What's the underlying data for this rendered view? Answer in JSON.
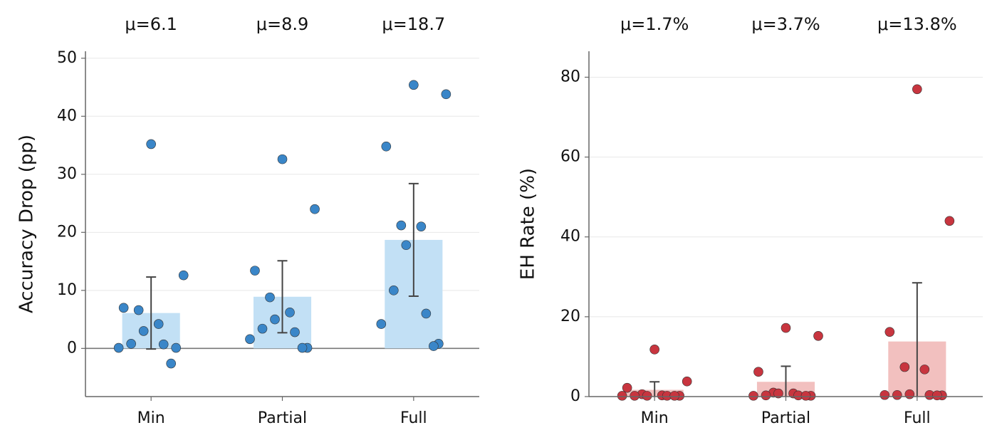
{
  "chart_data": [
    {
      "type": "bar",
      "ylabel": "Accuracy Drop (pp)",
      "categories": [
        "Min",
        "Partial",
        "Full"
      ],
      "values": [
        6.1,
        8.9,
        18.7
      ],
      "value_labels": [
        "μ=6.1",
        "μ=8.9",
        "μ=18.7"
      ],
      "errors": [
        6.2,
        6.2,
        9.7
      ],
      "points": [
        [
          35.2,
          12.6,
          7.0,
          6.6,
          4.2,
          3.0,
          0.8,
          0.7,
          0.1,
          0.1,
          -2.6
        ],
        [
          32.6,
          24.0,
          13.4,
          8.8,
          6.2,
          5.0,
          3.4,
          2.8,
          1.6,
          0.1,
          0.1
        ],
        [
          45.4,
          43.8,
          34.8,
          21.2,
          21.0,
          17.8,
          10.0,
          6.0,
          4.2,
          0.8,
          0.4
        ]
      ],
      "color": "#c2e0f5",
      "point_color": "#3a86c8",
      "ylim": [
        -8.3,
        51.2
      ],
      "yticks": [
        0,
        10,
        20,
        30,
        40,
        50
      ],
      "grid": true
    },
    {
      "type": "bar",
      "ylabel": "EH Rate (%)",
      "categories": [
        "Min",
        "Partial",
        "Full"
      ],
      "values": [
        1.7,
        3.7,
        13.8
      ],
      "value_labels": [
        "μ=1.7%",
        "μ=3.7%",
        "μ=13.8%"
      ],
      "errors": [
        2.0,
        3.9,
        14.7
      ],
      "points": [
        [
          11.8,
          3.8,
          2.2,
          0.6,
          0.3,
          0.2,
          0.2,
          0.2,
          0.2,
          0.2,
          0.2
        ],
        [
          17.2,
          15.2,
          6.2,
          1.0,
          0.8,
          0.8,
          0.3,
          0.3,
          0.2,
          0.2,
          0.2
        ],
        [
          77.0,
          44.0,
          16.2,
          7.4,
          6.8,
          0.6,
          0.4,
          0.4,
          0.4,
          0.3,
          0.3
        ]
      ],
      "color": "#f2c0bf",
      "point_color": "#c8353f",
      "ylim": [
        0,
        86.5
      ],
      "yticks": [
        0,
        20,
        40,
        60,
        80
      ],
      "grid": true
    }
  ]
}
